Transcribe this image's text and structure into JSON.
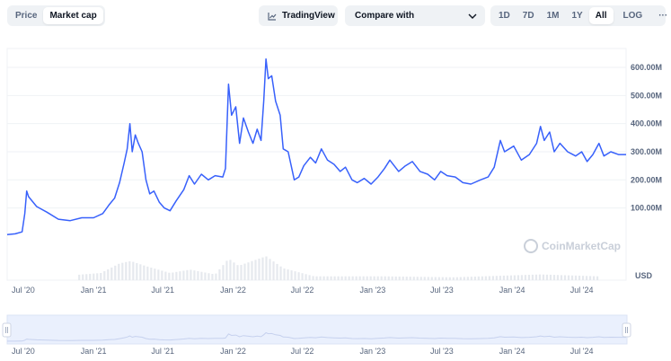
{
  "toolbar": {
    "metric_options": [
      {
        "label": "Price",
        "active": false
      },
      {
        "label": "Market cap",
        "active": true
      }
    ],
    "tradingview_label": "TradingView",
    "compare_label": "Compare with",
    "range_options": [
      {
        "label": "1D",
        "active": false
      },
      {
        "label": "7D",
        "active": false
      },
      {
        "label": "1M",
        "active": false
      },
      {
        "label": "1Y",
        "active": false
      },
      {
        "label": "All",
        "active": true
      }
    ],
    "log_label": "LOG",
    "more_label": "···"
  },
  "watermark": "CoinMarketCap",
  "colors": {
    "line": "#3861fb",
    "volume": "#e6e9ee",
    "grid": "#eff2f5",
    "navigator_fill": "#eaf0fd"
  },
  "chart_data": {
    "type": "line",
    "title": "",
    "xlabel": "",
    "ylabel": "",
    "y_unit_label": "USD",
    "x_ticks": [
      "Jul '20",
      "Jan '21",
      "Jul '21",
      "Jan '22",
      "Jul '22",
      "Jan '23",
      "Jul '23",
      "Jan '24",
      "Jul '24"
    ],
    "x_tick_dates": [
      "2020-07-01",
      "2021-01-01",
      "2021-07-01",
      "2022-01-01",
      "2022-07-01",
      "2023-01-01",
      "2023-07-01",
      "2024-01-01",
      "2024-07-01"
    ],
    "y_ticks": [
      "100.00M",
      "200.00M",
      "300.00M",
      "400.00M",
      "500.00M",
      "600.00M"
    ],
    "y_tick_values": [
      100000000,
      200000000,
      300000000,
      400000000,
      500000000,
      600000000
    ],
    "ylim": [
      -125000000,
      680000000
    ],
    "xlim": [
      "2020-05-20",
      "2024-10-25"
    ],
    "grid": true,
    "legend": "none",
    "series": [
      {
        "points": [
          [
            "2020-05-20",
            5000000
          ],
          [
            "2020-06-10",
            8000000
          ],
          [
            "2020-06-28",
            15000000
          ],
          [
            "2020-07-05",
            80000000
          ],
          [
            "2020-07-10",
            160000000
          ],
          [
            "2020-07-15",
            140000000
          ],
          [
            "2020-08-05",
            105000000
          ],
          [
            "2020-09-01",
            85000000
          ],
          [
            "2020-10-01",
            60000000
          ],
          [
            "2020-11-01",
            55000000
          ],
          [
            "2020-12-01",
            65000000
          ],
          [
            "2021-01-01",
            65000000
          ],
          [
            "2021-01-25",
            80000000
          ],
          [
            "2021-02-10",
            110000000
          ],
          [
            "2021-02-25",
            135000000
          ],
          [
            "2021-03-10",
            190000000
          ],
          [
            "2021-03-22",
            260000000
          ],
          [
            "2021-03-30",
            310000000
          ],
          [
            "2021-04-06",
            400000000
          ],
          [
            "2021-04-12",
            300000000
          ],
          [
            "2021-04-20",
            360000000
          ],
          [
            "2021-04-28",
            330000000
          ],
          [
            "2021-05-08",
            300000000
          ],
          [
            "2021-05-18",
            200000000
          ],
          [
            "2021-05-28",
            150000000
          ],
          [
            "2021-06-08",
            160000000
          ],
          [
            "2021-06-22",
            120000000
          ],
          [
            "2021-07-05",
            100000000
          ],
          [
            "2021-07-20",
            90000000
          ],
          [
            "2021-08-05",
            125000000
          ],
          [
            "2021-08-25",
            165000000
          ],
          [
            "2021-09-08",
            215000000
          ],
          [
            "2021-09-22",
            185000000
          ],
          [
            "2021-10-10",
            220000000
          ],
          [
            "2021-10-28",
            200000000
          ],
          [
            "2021-11-15",
            215000000
          ],
          [
            "2021-12-05",
            210000000
          ],
          [
            "2021-12-12",
            240000000
          ],
          [
            "2021-12-20",
            540000000
          ],
          [
            "2021-12-28",
            430000000
          ],
          [
            "2022-01-08",
            460000000
          ],
          [
            "2022-01-18",
            330000000
          ],
          [
            "2022-01-28",
            420000000
          ],
          [
            "2022-02-10",
            370000000
          ],
          [
            "2022-02-22",
            330000000
          ],
          [
            "2022-03-05",
            380000000
          ],
          [
            "2022-03-15",
            340000000
          ],
          [
            "2022-03-22",
            480000000
          ],
          [
            "2022-03-28",
            630000000
          ],
          [
            "2022-04-03",
            560000000
          ],
          [
            "2022-04-12",
            570000000
          ],
          [
            "2022-04-22",
            480000000
          ],
          [
            "2022-05-04",
            430000000
          ],
          [
            "2022-05-12",
            310000000
          ],
          [
            "2022-05-25",
            300000000
          ],
          [
            "2022-06-10",
            200000000
          ],
          [
            "2022-06-22",
            210000000
          ],
          [
            "2022-07-05",
            250000000
          ],
          [
            "2022-07-22",
            280000000
          ],
          [
            "2022-08-05",
            260000000
          ],
          [
            "2022-08-20",
            310000000
          ],
          [
            "2022-09-05",
            270000000
          ],
          [
            "2022-09-22",
            255000000
          ],
          [
            "2022-10-08",
            230000000
          ],
          [
            "2022-10-22",
            245000000
          ],
          [
            "2022-11-08",
            200000000
          ],
          [
            "2022-11-22",
            190000000
          ],
          [
            "2022-12-10",
            205000000
          ],
          [
            "2022-12-28",
            185000000
          ],
          [
            "2023-01-15",
            210000000
          ],
          [
            "2023-02-01",
            240000000
          ],
          [
            "2023-02-15",
            270000000
          ],
          [
            "2023-03-10",
            230000000
          ],
          [
            "2023-03-28",
            250000000
          ],
          [
            "2023-04-15",
            265000000
          ],
          [
            "2023-05-05",
            230000000
          ],
          [
            "2023-05-25",
            220000000
          ],
          [
            "2023-06-12",
            200000000
          ],
          [
            "2023-06-28",
            230000000
          ],
          [
            "2023-07-15",
            215000000
          ],
          [
            "2023-08-05",
            210000000
          ],
          [
            "2023-08-25",
            190000000
          ],
          [
            "2023-09-15",
            185000000
          ],
          [
            "2023-10-10",
            200000000
          ],
          [
            "2023-10-30",
            210000000
          ],
          [
            "2023-11-15",
            245000000
          ],
          [
            "2023-12-01",
            340000000
          ],
          [
            "2023-12-12",
            300000000
          ],
          [
            "2024-01-05",
            320000000
          ],
          [
            "2024-01-25",
            270000000
          ],
          [
            "2024-02-15",
            290000000
          ],
          [
            "2024-03-05",
            330000000
          ],
          [
            "2024-03-15",
            390000000
          ],
          [
            "2024-03-25",
            340000000
          ],
          [
            "2024-04-08",
            370000000
          ],
          [
            "2024-04-20",
            300000000
          ],
          [
            "2024-05-05",
            330000000
          ],
          [
            "2024-05-25",
            300000000
          ],
          [
            "2024-06-15",
            285000000
          ],
          [
            "2024-07-01",
            300000000
          ],
          [
            "2024-07-15",
            265000000
          ],
          [
            "2024-07-30",
            290000000
          ],
          [
            "2024-08-15",
            330000000
          ],
          [
            "2024-08-28",
            285000000
          ],
          [
            "2024-09-15",
            300000000
          ],
          [
            "2024-10-05",
            290000000
          ],
          [
            "2024-10-25",
            290000000
          ]
        ]
      }
    ],
    "volume_series": {
      "points": [
        [
          "2020-07-10",
          35000000
        ],
        [
          "2020-08-10",
          18000000
        ],
        [
          "2020-10-01",
          8000000
        ],
        [
          "2021-01-20",
          15000000
        ],
        [
          "2021-03-10",
          35000000
        ],
        [
          "2021-04-08",
          40000000
        ],
        [
          "2021-05-15",
          30000000
        ],
        [
          "2021-07-20",
          15000000
        ],
        [
          "2021-09-10",
          22000000
        ],
        [
          "2021-11-15",
          12000000
        ],
        [
          "2021-12-20",
          45000000
        ],
        [
          "2022-01-15",
          30000000
        ],
        [
          "2022-03-28",
          50000000
        ],
        [
          "2022-05-12",
          25000000
        ],
        [
          "2022-08-01",
          8000000
        ],
        [
          "2023-02-01",
          8000000
        ],
        [
          "2023-08-01",
          6000000
        ],
        [
          "2024-03-15",
          12000000
        ],
        [
          "2024-08-15",
          8000000
        ]
      ]
    }
  }
}
